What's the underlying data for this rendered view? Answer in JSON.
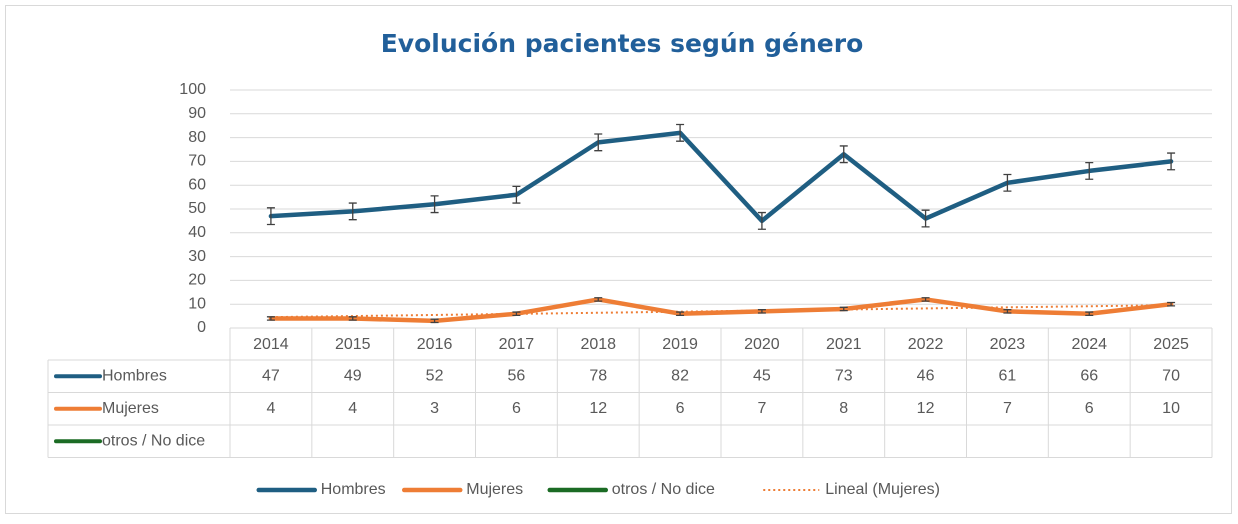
{
  "chart_data": {
    "type": "line",
    "title": "Evolución pacientes según género",
    "categories": [
      "2014",
      "2015",
      "2016",
      "2017",
      "2018",
      "2019",
      "2020",
      "2021",
      "2022",
      "2023",
      "2024",
      "2025"
    ],
    "series": [
      {
        "name": "Hombres",
        "color": "#1f5e82",
        "values": [
          47,
          49,
          52,
          56,
          78,
          82,
          45,
          73,
          46,
          61,
          66,
          70
        ],
        "error": 3.5
      },
      {
        "name": "Mujeres",
        "color": "#ee7d35",
        "values": [
          4,
          4,
          3,
          6,
          12,
          6,
          7,
          8,
          12,
          7,
          6,
          10
        ],
        "error": 0.7,
        "trendline": {
          "name": "Lineal (Mujeres)",
          "kind": "linear"
        }
      },
      {
        "name": "otros / No dice",
        "color": "#1b6b24",
        "values": [
          null,
          null,
          null,
          null,
          null,
          null,
          null,
          null,
          null,
          null,
          null,
          null
        ]
      }
    ],
    "ylim": [
      0,
      100
    ],
    "yticks": [
      0,
      10,
      20,
      30,
      40,
      50,
      60,
      70,
      80,
      90,
      100
    ],
    "grid": true,
    "data_table": true,
    "legend": "bottom"
  }
}
